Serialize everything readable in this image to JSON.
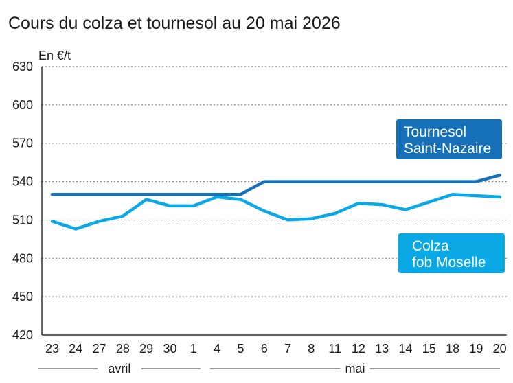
{
  "chart_data": {
    "type": "line",
    "title": "Cours du colza et tournesol au 20 mai 2026",
    "ylabel": "En €/t",
    "ylim": [
      420,
      630
    ],
    "yticks": [
      420,
      450,
      480,
      510,
      540,
      570,
      600,
      630
    ],
    "grid": true,
    "x": [
      "23",
      "24",
      "27",
      "28",
      "29",
      "30",
      "1",
      "4",
      "5",
      "6",
      "7",
      "8",
      "11",
      "12",
      "13",
      "14",
      "15",
      "18",
      "19",
      "20"
    ],
    "months": [
      {
        "label": "avril",
        "from": 0,
        "to": 6
      },
      {
        "label": "mai",
        "from": 7,
        "to": 19
      }
    ],
    "series": [
      {
        "name": "Tournesol Saint-Nazaire",
        "legend_lines": [
          "Tournesol",
          "Saint-Nazaire"
        ],
        "color": "#1570b7",
        "values": [
          530,
          530,
          530,
          530,
          530,
          530,
          530,
          530,
          530,
          540,
          540,
          540,
          540,
          540,
          540,
          540,
          540,
          540,
          540,
          545
        ]
      },
      {
        "name": "Colza fob Moselle",
        "legend_lines": [
          "Colza",
          "fob Moselle"
        ],
        "color": "#0aa9e6",
        "values": [
          509,
          503,
          509,
          513,
          526,
          521,
          521,
          528,
          526,
          517,
          510,
          511,
          515,
          523,
          522,
          518,
          524,
          530,
          529,
          528
        ]
      }
    ]
  }
}
